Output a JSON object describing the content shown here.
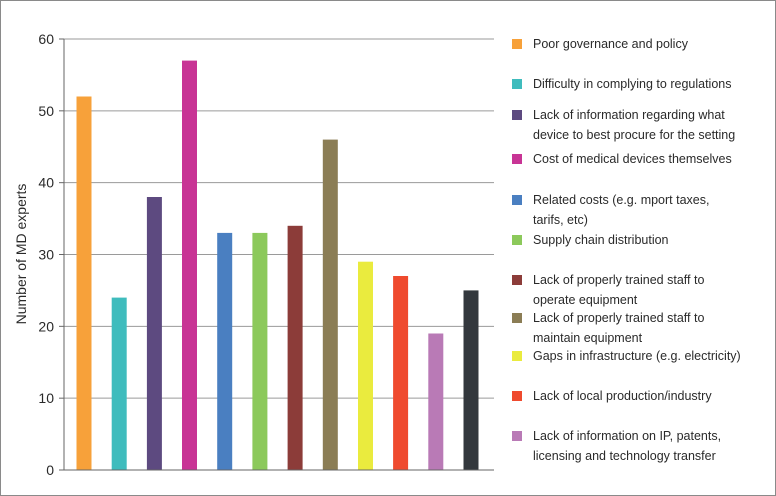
{
  "chart_data": {
    "type": "bar",
    "ylabel": "Number of MD experts",
    "xlabel": "",
    "ylim": [
      0,
      60
    ],
    "yticks": [
      0,
      10,
      20,
      30,
      40,
      50,
      60
    ],
    "grid": true,
    "legend_position": "right",
    "categories": [
      "Poor governance and policy",
      "Difficulty in complying to regulations",
      "Lack of information regarding what device to best procure for the setting",
      "Cost of medical devices themselves",
      "Related costs (e.g. mport taxes, tarifs, etc)",
      "Supply chain distribution",
      "Lack of properly trained staff to operate equipment",
      "Lack of properly trained staff to maintain equipment",
      "Gaps in infrastructure (e.g. electricity)",
      "Lack of local production/industry",
      "Lack of information on IP, patents, licensing and technology transfer",
      ""
    ],
    "values": [
      52,
      24,
      38,
      57,
      33,
      33,
      34,
      46,
      29,
      27,
      19,
      25
    ],
    "colors": [
      "#f7a13a",
      "#3fbcbd",
      "#5d4a80",
      "#c83495",
      "#4a7fc1",
      "#8cc95b",
      "#8c3c39",
      "#8b7d55",
      "#eaeb3e",
      "#ef4a2e",
      "#b97ab6",
      "#33383d"
    ]
  },
  "legend": {
    "items": [
      {
        "line1": "Poor governance and policy",
        "line2": ""
      },
      {
        "line1": "Difficulty in complying to regulations",
        "line2": ""
      },
      {
        "line1": "Lack of information regarding what",
        "line2": "device to best procure for the setting"
      },
      {
        "line1": "Cost of medical devices themselves",
        "line2": ""
      },
      {
        "line1": "Related costs (e.g. mport taxes,",
        "line2": "tarifs, etc)"
      },
      {
        "line1": "Supply chain distribution",
        "line2": ""
      },
      {
        "line1": "Lack of properly trained staff to",
        "line2": "operate equipment"
      },
      {
        "line1": "Lack of properly trained staff to",
        "line2": "maintain equipment"
      },
      {
        "line1": "Gaps in infrastructure (e.g. electricity)",
        "line2": ""
      },
      {
        "line1": "Lack of local production/industry",
        "line2": ""
      },
      {
        "line1": "Lack of information on IP, patents,",
        "line2": "licensing and technology transfer"
      }
    ]
  }
}
